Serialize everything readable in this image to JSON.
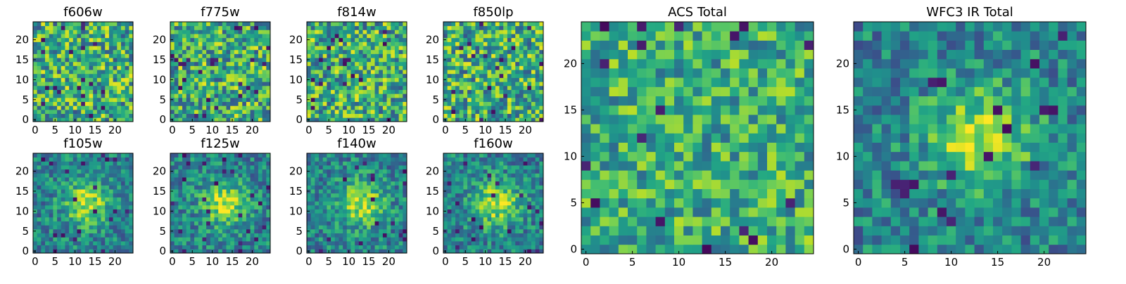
{
  "figure": {
    "colormap": "viridis",
    "colors": {
      "viridis_low": "#440154",
      "viridis_mid": "#21918c",
      "viridis_high": "#fde725",
      "axis": "#000000",
      "background": "#ffffff"
    }
  },
  "chart_data": [
    {
      "type": "heatmap",
      "title": "f606w",
      "grid_size": 25,
      "xlim": [
        0,
        24
      ],
      "ylim": [
        0,
        24
      ],
      "xticks": [
        0,
        5,
        10,
        15,
        20
      ],
      "yticks": [
        0,
        5,
        10,
        15,
        20
      ],
      "seed": 11,
      "profile": "noise"
    },
    {
      "type": "heatmap",
      "title": "f775w",
      "grid_size": 25,
      "xlim": [
        0,
        24
      ],
      "ylim": [
        0,
        24
      ],
      "xticks": [
        0,
        5,
        10,
        15,
        20
      ],
      "yticks": [
        0,
        5,
        10,
        15,
        20
      ],
      "seed": 23,
      "profile": "noise"
    },
    {
      "type": "heatmap",
      "title": "f814w",
      "grid_size": 25,
      "xlim": [
        0,
        24
      ],
      "ylim": [
        0,
        24
      ],
      "xticks": [
        0,
        5,
        10,
        15,
        20
      ],
      "yticks": [
        0,
        5,
        10,
        15,
        20
      ],
      "seed": 37,
      "profile": "noise"
    },
    {
      "type": "heatmap",
      "title": "f850lp",
      "grid_size": 25,
      "xlim": [
        0,
        24
      ],
      "ylim": [
        0,
        24
      ],
      "xticks": [
        0,
        5,
        10,
        15,
        20
      ],
      "yticks": [
        0,
        5,
        10,
        15,
        20
      ],
      "seed": 41,
      "profile": "noise"
    },
    {
      "type": "heatmap",
      "title": "f105w",
      "grid_size": 25,
      "xlim": [
        0,
        24
      ],
      "ylim": [
        0,
        24
      ],
      "xticks": [
        0,
        5,
        10,
        15,
        20
      ],
      "yticks": [
        0,
        5,
        10,
        15,
        20
      ],
      "seed": 53,
      "profile": "source",
      "source_center": [
        13,
        12
      ]
    },
    {
      "type": "heatmap",
      "title": "f125w",
      "grid_size": 25,
      "xlim": [
        0,
        24
      ],
      "ylim": [
        0,
        24
      ],
      "xticks": [
        0,
        5,
        10,
        15,
        20
      ],
      "yticks": [
        0,
        5,
        10,
        15,
        20
      ],
      "seed": 67,
      "profile": "source",
      "source_center": [
        13,
        12
      ]
    },
    {
      "type": "heatmap",
      "title": "f140w",
      "grid_size": 25,
      "xlim": [
        0,
        24
      ],
      "ylim": [
        0,
        24
      ],
      "xticks": [
        0,
        5,
        10,
        15,
        20
      ],
      "yticks": [
        0,
        5,
        10,
        15,
        20
      ],
      "seed": 79,
      "profile": "source",
      "source_center": [
        13,
        12
      ]
    },
    {
      "type": "heatmap",
      "title": "f160w",
      "grid_size": 25,
      "xlim": [
        0,
        24
      ],
      "ylim": [
        0,
        24
      ],
      "xticks": [
        0,
        5,
        10,
        15,
        20
      ],
      "yticks": [
        0,
        5,
        10,
        15,
        20
      ],
      "seed": 83,
      "profile": "source",
      "source_center": [
        13,
        12
      ]
    },
    {
      "type": "heatmap",
      "title": "ACS Total",
      "grid_size": 25,
      "xlim": [
        0,
        24
      ],
      "ylim": [
        0,
        24
      ],
      "xticks": [
        0,
        5,
        10,
        15,
        20
      ],
      "yticks": [
        0,
        5,
        10,
        15,
        20
      ],
      "seed": 97,
      "profile": "coarse-noise"
    },
    {
      "type": "heatmap",
      "title": "WFC3 IR Total",
      "grid_size": 25,
      "xlim": [
        0,
        24
      ],
      "ylim": [
        0,
        24
      ],
      "xticks": [
        0,
        5,
        10,
        15,
        20
      ],
      "yticks": [
        0,
        5,
        10,
        15,
        20
      ],
      "seed": 101,
      "profile": "source",
      "source_center": [
        13,
        12
      ]
    }
  ]
}
